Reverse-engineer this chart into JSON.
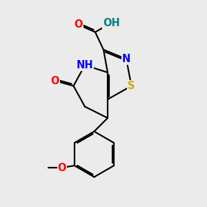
{
  "background_color": "#ebebeb",
  "bond_color": "#000000",
  "bond_width": 1.6,
  "atom_colors": {
    "O": "#ff0000",
    "N": "#0000ff",
    "S": "#ccaa00",
    "H_color": "#008080",
    "C": "#000000"
  },
  "font_size": 10.5,
  "fig_size": [
    3.0,
    3.0
  ],
  "dpi": 100
}
